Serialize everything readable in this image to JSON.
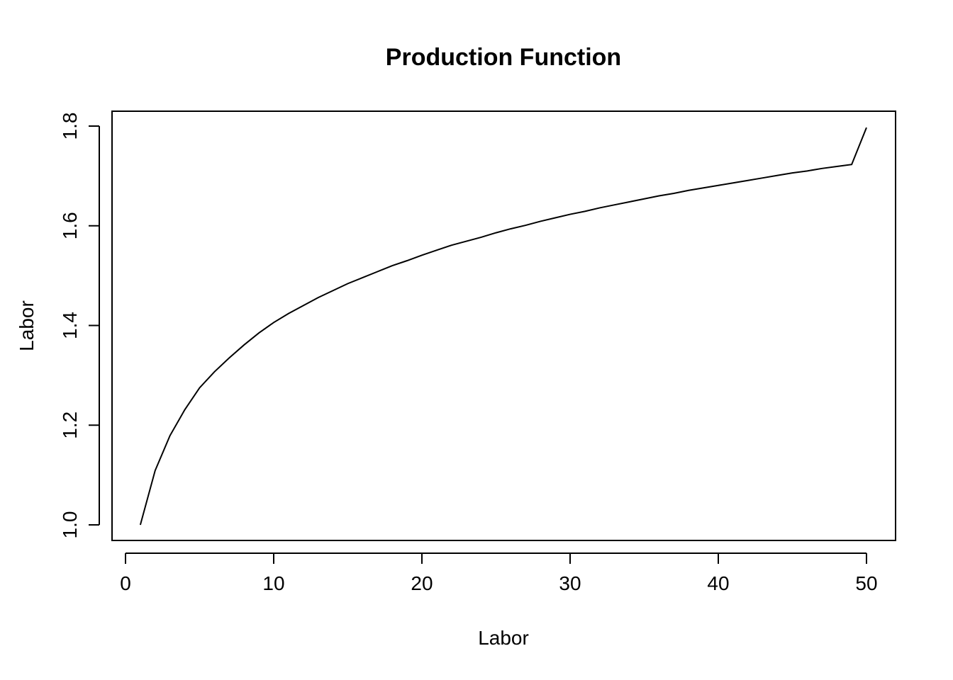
{
  "chart_data": {
    "type": "line",
    "title": "Production Function",
    "xlabel": "Labor",
    "ylabel": "Labor",
    "xlim": [
      0,
      50
    ],
    "ylim": [
      1.0,
      1.8
    ],
    "xticks": [
      "0",
      "10",
      "20",
      "30",
      "40",
      "50"
    ],
    "yticks": [
      "1.0",
      "1.2",
      "1.4",
      "1.6",
      "1.8"
    ],
    "grid": false,
    "series": [
      {
        "color": "#000000",
        "x": [
          1,
          2,
          3,
          4,
          5,
          6,
          7,
          8,
          9,
          10,
          11,
          12,
          13,
          14,
          15,
          16,
          17,
          18,
          19,
          20,
          21,
          22,
          23,
          24,
          25,
          26,
          27,
          28,
          29,
          30,
          31,
          32,
          33,
          34,
          35,
          36,
          37,
          38,
          39,
          40,
          41,
          42,
          43,
          44,
          45,
          46,
          47,
          48,
          49,
          50
        ],
        "y": [
          1.0,
          1.109,
          1.179,
          1.231,
          1.275,
          1.307,
          1.335,
          1.361,
          1.385,
          1.406,
          1.424,
          1.44,
          1.456,
          1.47,
          1.484,
          1.496,
          1.508,
          1.52,
          1.53,
          1.541,
          1.551,
          1.561,
          1.569,
          1.577,
          1.586,
          1.594,
          1.601,
          1.609,
          1.616,
          1.623,
          1.629,
          1.636,
          1.642,
          1.648,
          1.654,
          1.66,
          1.665,
          1.671,
          1.676,
          1.681,
          1.686,
          1.691,
          1.696,
          1.701,
          1.706,
          1.71,
          1.715,
          1.719,
          1.723,
          1.797
        ]
      }
    ]
  }
}
